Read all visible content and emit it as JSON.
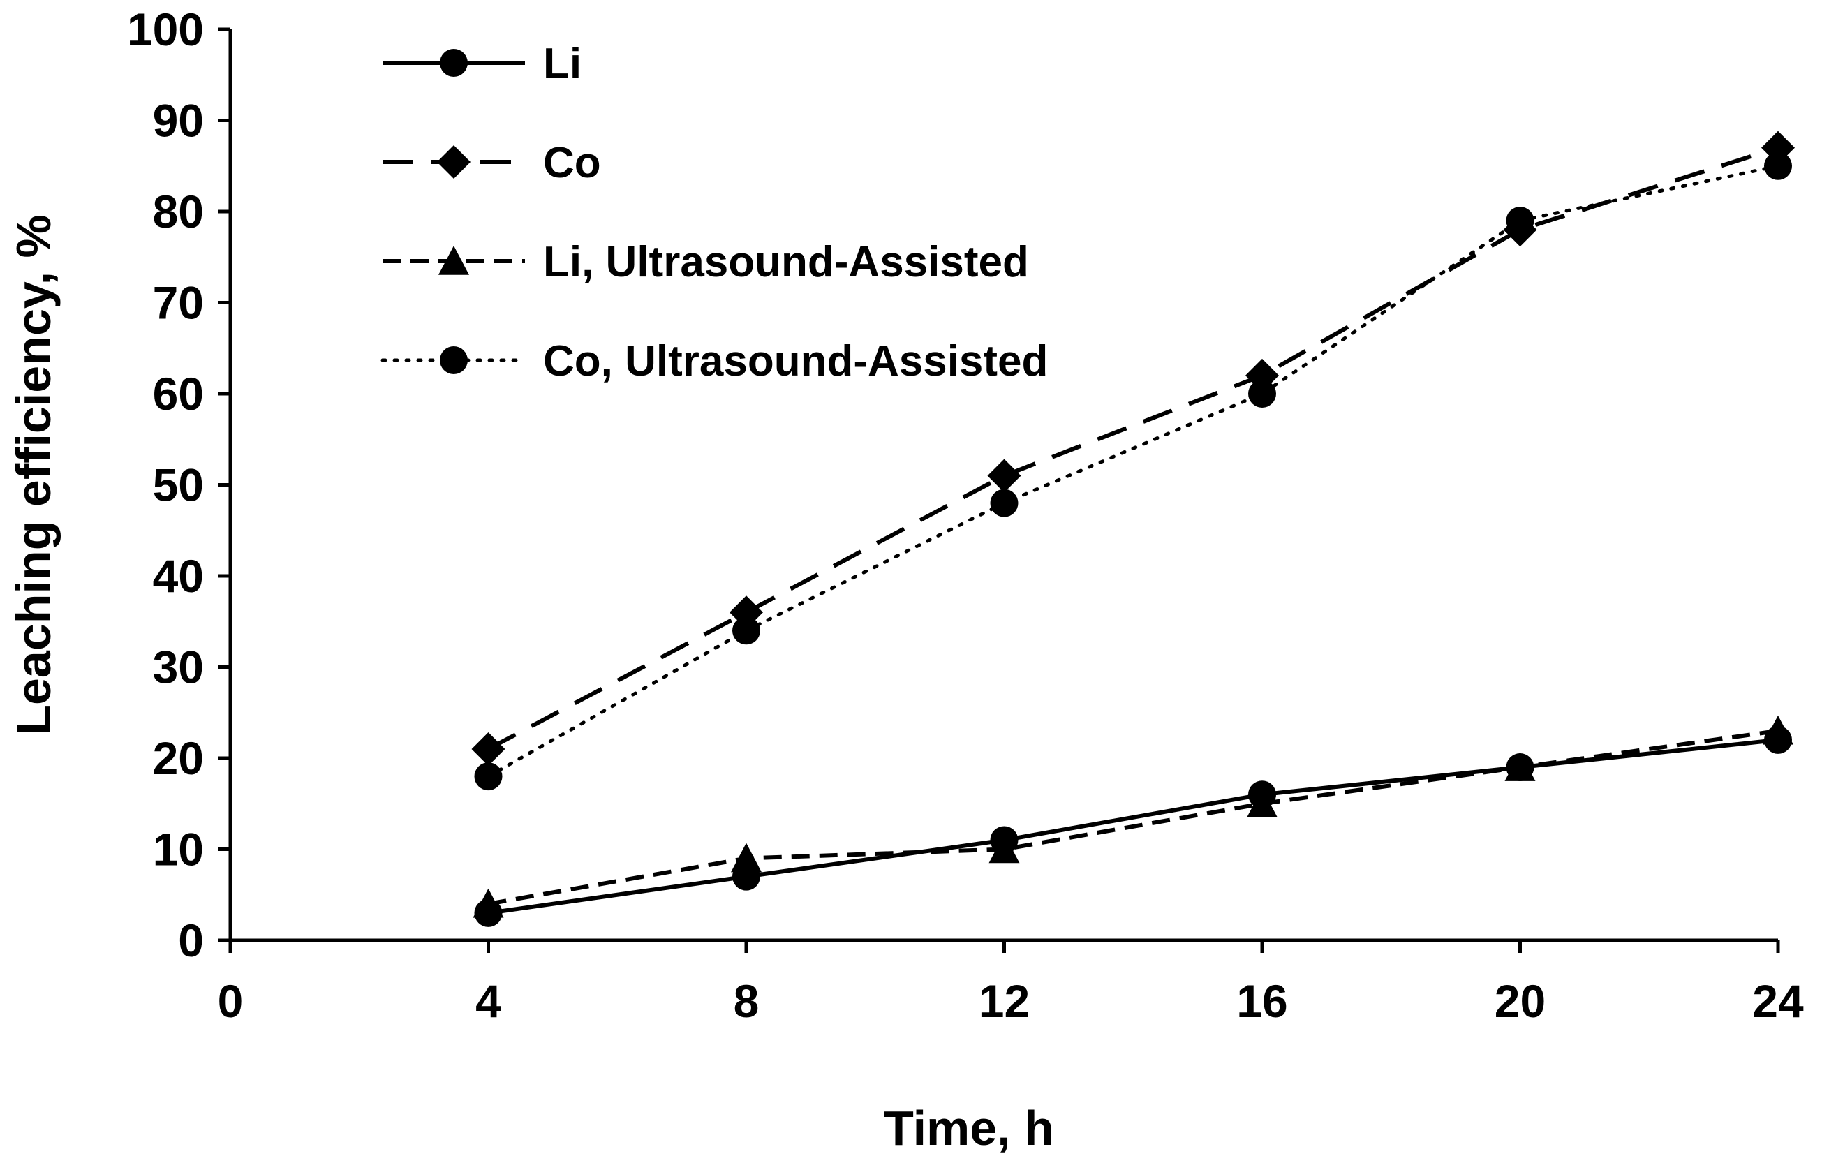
{
  "chart_data": {
    "type": "line",
    "title": "",
    "xlabel": "Time, h",
    "ylabel": "Leaching efficiency, %",
    "xlim": [
      0,
      24
    ],
    "ylim": [
      0,
      100
    ],
    "xticks": [
      0,
      4,
      8,
      12,
      16,
      20,
      24
    ],
    "yticks": [
      0,
      10,
      20,
      30,
      40,
      50,
      60,
      70,
      80,
      90,
      100
    ],
    "grid": false,
    "legend": "top-left",
    "x": [
      4,
      8,
      12,
      16,
      20,
      24
    ],
    "series": [
      {
        "name": "Li",
        "values": [
          3,
          7,
          11,
          16,
          19,
          22
        ],
        "marker": "circle",
        "line": "solid"
      },
      {
        "name": "Co",
        "values": [
          21,
          36,
          51,
          62,
          78,
          87
        ],
        "marker": "diamond",
        "line": "long-dash"
      },
      {
        "name": "Li, Ultrasound-Assisted",
        "values": [
          4,
          9,
          10,
          15,
          19,
          23
        ],
        "marker": "triangle",
        "line": "short-dash"
      },
      {
        "name": "Co, Ultrasound-Assisted",
        "values": [
          18,
          34,
          48,
          60,
          79,
          85
        ],
        "marker": "circle",
        "line": "dotted"
      }
    ],
    "colors": {
      "line": "#000000",
      "marker": "#000000",
      "background": "#ffffff"
    }
  }
}
